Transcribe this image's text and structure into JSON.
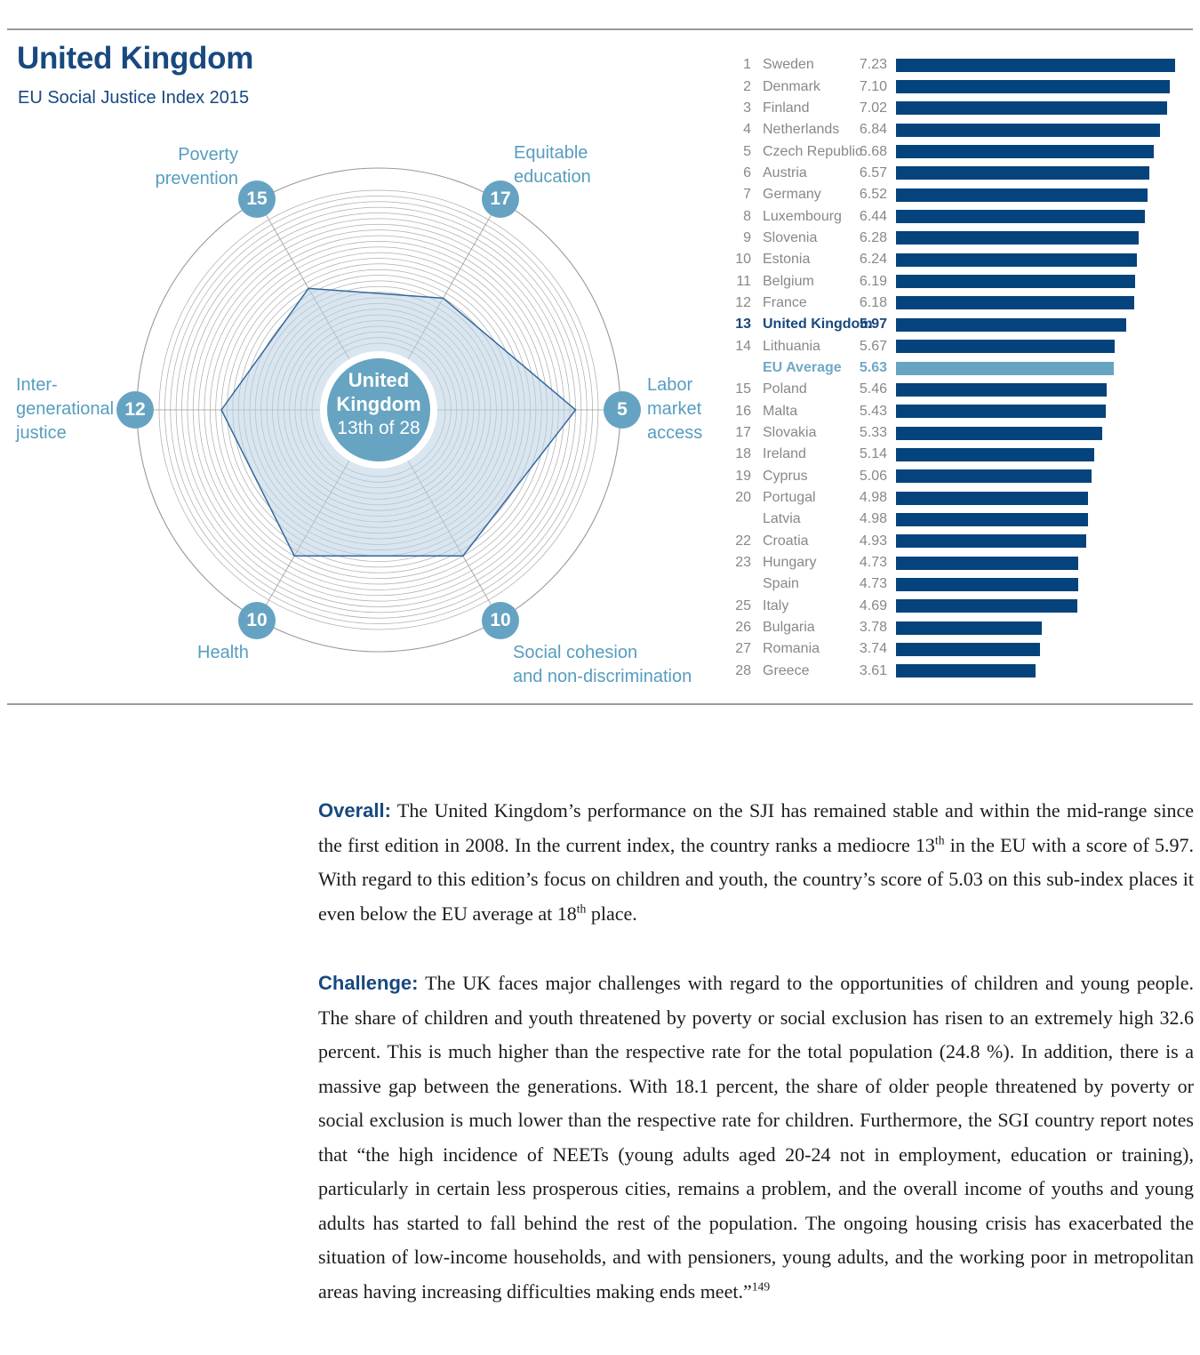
{
  "header": {
    "title": "United Kingdom",
    "subtitle": "EU Social Justice Index 2015"
  },
  "colors": {
    "navy_bar": "#04437c",
    "light_blue": "#66a4c2",
    "label_blue": "#569dc0",
    "title_navy": "#17497f",
    "list_gray": "#87888a",
    "grid_gray": "#9a9a9a",
    "ring_gray": "#afafaf",
    "polygon_stroke": "#34699e",
    "polygon_fill": "rgba(185,207,226,0.55)"
  },
  "chart_data": [
    {
      "type": "radar",
      "center_label": {
        "line1": "United",
        "line2": "Kingdom",
        "line3": "13th of 28"
      },
      "rank_scale": {
        "best": 1,
        "worst": 28
      },
      "axes": [
        {
          "name": "Poverty prevention",
          "lines": [
            "Poverty",
            "prevention"
          ],
          "rank": 15,
          "angle_deg": 120
        },
        {
          "name": "Equitable education",
          "lines": [
            "Equitable",
            "education"
          ],
          "rank": 17,
          "angle_deg": 60
        },
        {
          "name": "Labor market access",
          "lines": [
            "Labor",
            "market",
            "access"
          ],
          "rank": 5,
          "angle_deg": 0
        },
        {
          "name": "Social cohesion and non-discrimination",
          "lines": [
            "Social cohesion",
            "and non-discrimination"
          ],
          "rank": 10,
          "angle_deg": 300
        },
        {
          "name": "Health",
          "lines": [
            "Health"
          ],
          "rank": 10,
          "angle_deg": 240
        },
        {
          "name": "Inter-generational justice",
          "lines": [
            "Inter-",
            "generational",
            "justice"
          ],
          "rank": 12,
          "angle_deg": 180
        }
      ]
    },
    {
      "type": "bar",
      "orientation": "horizontal",
      "title": "EU Social Justice Index 2015 country ranking",
      "value_max": 7.23,
      "rows": [
        {
          "rank": "1",
          "country": "Sweden",
          "value": "7.23",
          "style": ""
        },
        {
          "rank": "2",
          "country": "Denmark",
          "value": "7.10",
          "style": ""
        },
        {
          "rank": "3",
          "country": "Finland",
          "value": "7.02",
          "style": ""
        },
        {
          "rank": "4",
          "country": "Netherlands",
          "value": "6.84",
          "style": ""
        },
        {
          "rank": "5",
          "country": "Czech Republic",
          "value": "6.68",
          "style": ""
        },
        {
          "rank": "6",
          "country": "Austria",
          "value": "6.57",
          "style": ""
        },
        {
          "rank": "7",
          "country": "Germany",
          "value": "6.52",
          "style": ""
        },
        {
          "rank": "8",
          "country": "Luxembourg",
          "value": "6.44",
          "style": ""
        },
        {
          "rank": "9",
          "country": "Slovenia",
          "value": "6.28",
          "style": ""
        },
        {
          "rank": "10",
          "country": "Estonia",
          "value": "6.24",
          "style": ""
        },
        {
          "rank": "11",
          "country": "Belgium",
          "value": "6.19",
          "style": ""
        },
        {
          "rank": "12",
          "country": "France",
          "value": "6.18",
          "style": ""
        },
        {
          "rank": "13",
          "country": "United Kingdom",
          "value": "5.97",
          "style": "uk"
        },
        {
          "rank": "14",
          "country": "Lithuania",
          "value": "5.67",
          "style": ""
        },
        {
          "rank": "",
          "country": "EU Average",
          "value": "5.63",
          "style": "eu"
        },
        {
          "rank": "15",
          "country": "Poland",
          "value": "5.46",
          "style": ""
        },
        {
          "rank": "16",
          "country": "Malta",
          "value": "5.43",
          "style": ""
        },
        {
          "rank": "17",
          "country": "Slovakia",
          "value": "5.33",
          "style": ""
        },
        {
          "rank": "18",
          "country": "Ireland",
          "value": "5.14",
          "style": ""
        },
        {
          "rank": "19",
          "country": "Cyprus",
          "value": "5.06",
          "style": ""
        },
        {
          "rank": "20",
          "country": "Portugal",
          "value": "4.98",
          "style": ""
        },
        {
          "rank": "",
          "country": "Latvia",
          "value": "4.98",
          "style": ""
        },
        {
          "rank": "22",
          "country": "Croatia",
          "value": "4.93",
          "style": ""
        },
        {
          "rank": "23",
          "country": "Hungary",
          "value": "4.73",
          "style": ""
        },
        {
          "rank": "",
          "country": "Spain",
          "value": "4.73",
          "style": ""
        },
        {
          "rank": "25",
          "country": "Italy",
          "value": "4.69",
          "style": ""
        },
        {
          "rank": "26",
          "country": "Bulgaria",
          "value": "3.78",
          "style": ""
        },
        {
          "rank": "27",
          "country": "Romania",
          "value": "3.74",
          "style": ""
        },
        {
          "rank": "28",
          "country": "Greece",
          "value": "3.61",
          "style": ""
        }
      ]
    }
  ],
  "sections": [
    {
      "label": "Overall:",
      "segments": [
        {
          "text": "The United Kingdom’s performance on the SJI has remained stable and within the mid-range since the first edition in 2008. In the current index, the country ranks a mediocre 13"
        },
        {
          "text": "th",
          "sup": true
        },
        {
          "text": " in the EU with a score of 5.97. With regard to this edition’s focus on children and youth, the country’s score of 5.03 on this sub-index places it even below the EU average at 18"
        },
        {
          "text": "th",
          "sup": true
        },
        {
          "text": " place."
        }
      ]
    },
    {
      "label": "Challenge:",
      "segments": [
        {
          "text": "The UK faces major challenges with regard to the opportunities of children and young people. The share of children and youth threatened by poverty or social exclusion has risen to an extremely high 32.6 percent. This is much higher than the respective rate for the total population (24.8 %). In addition, there is a massive gap between the generations. With 18.1 percent, the share of older people threatened by poverty or social exclusion is much lower than the respective rate for children. Furthermore, the SGI country report notes that “the high incidence of NEETs (young adults aged 20-24 not in employment, education or training), particularly in certain less prosperous cities, remains a problem, and the overall income of youths and young adults has started to fall behind the rest of the population. The ongoing housing crisis has exacerbated the situation of low-income households, and with pensioners, young adults, and the working poor in metropolitan areas having increasing difficulties making ends meet.”"
        },
        {
          "text": "149",
          "sup": true
        }
      ]
    }
  ]
}
